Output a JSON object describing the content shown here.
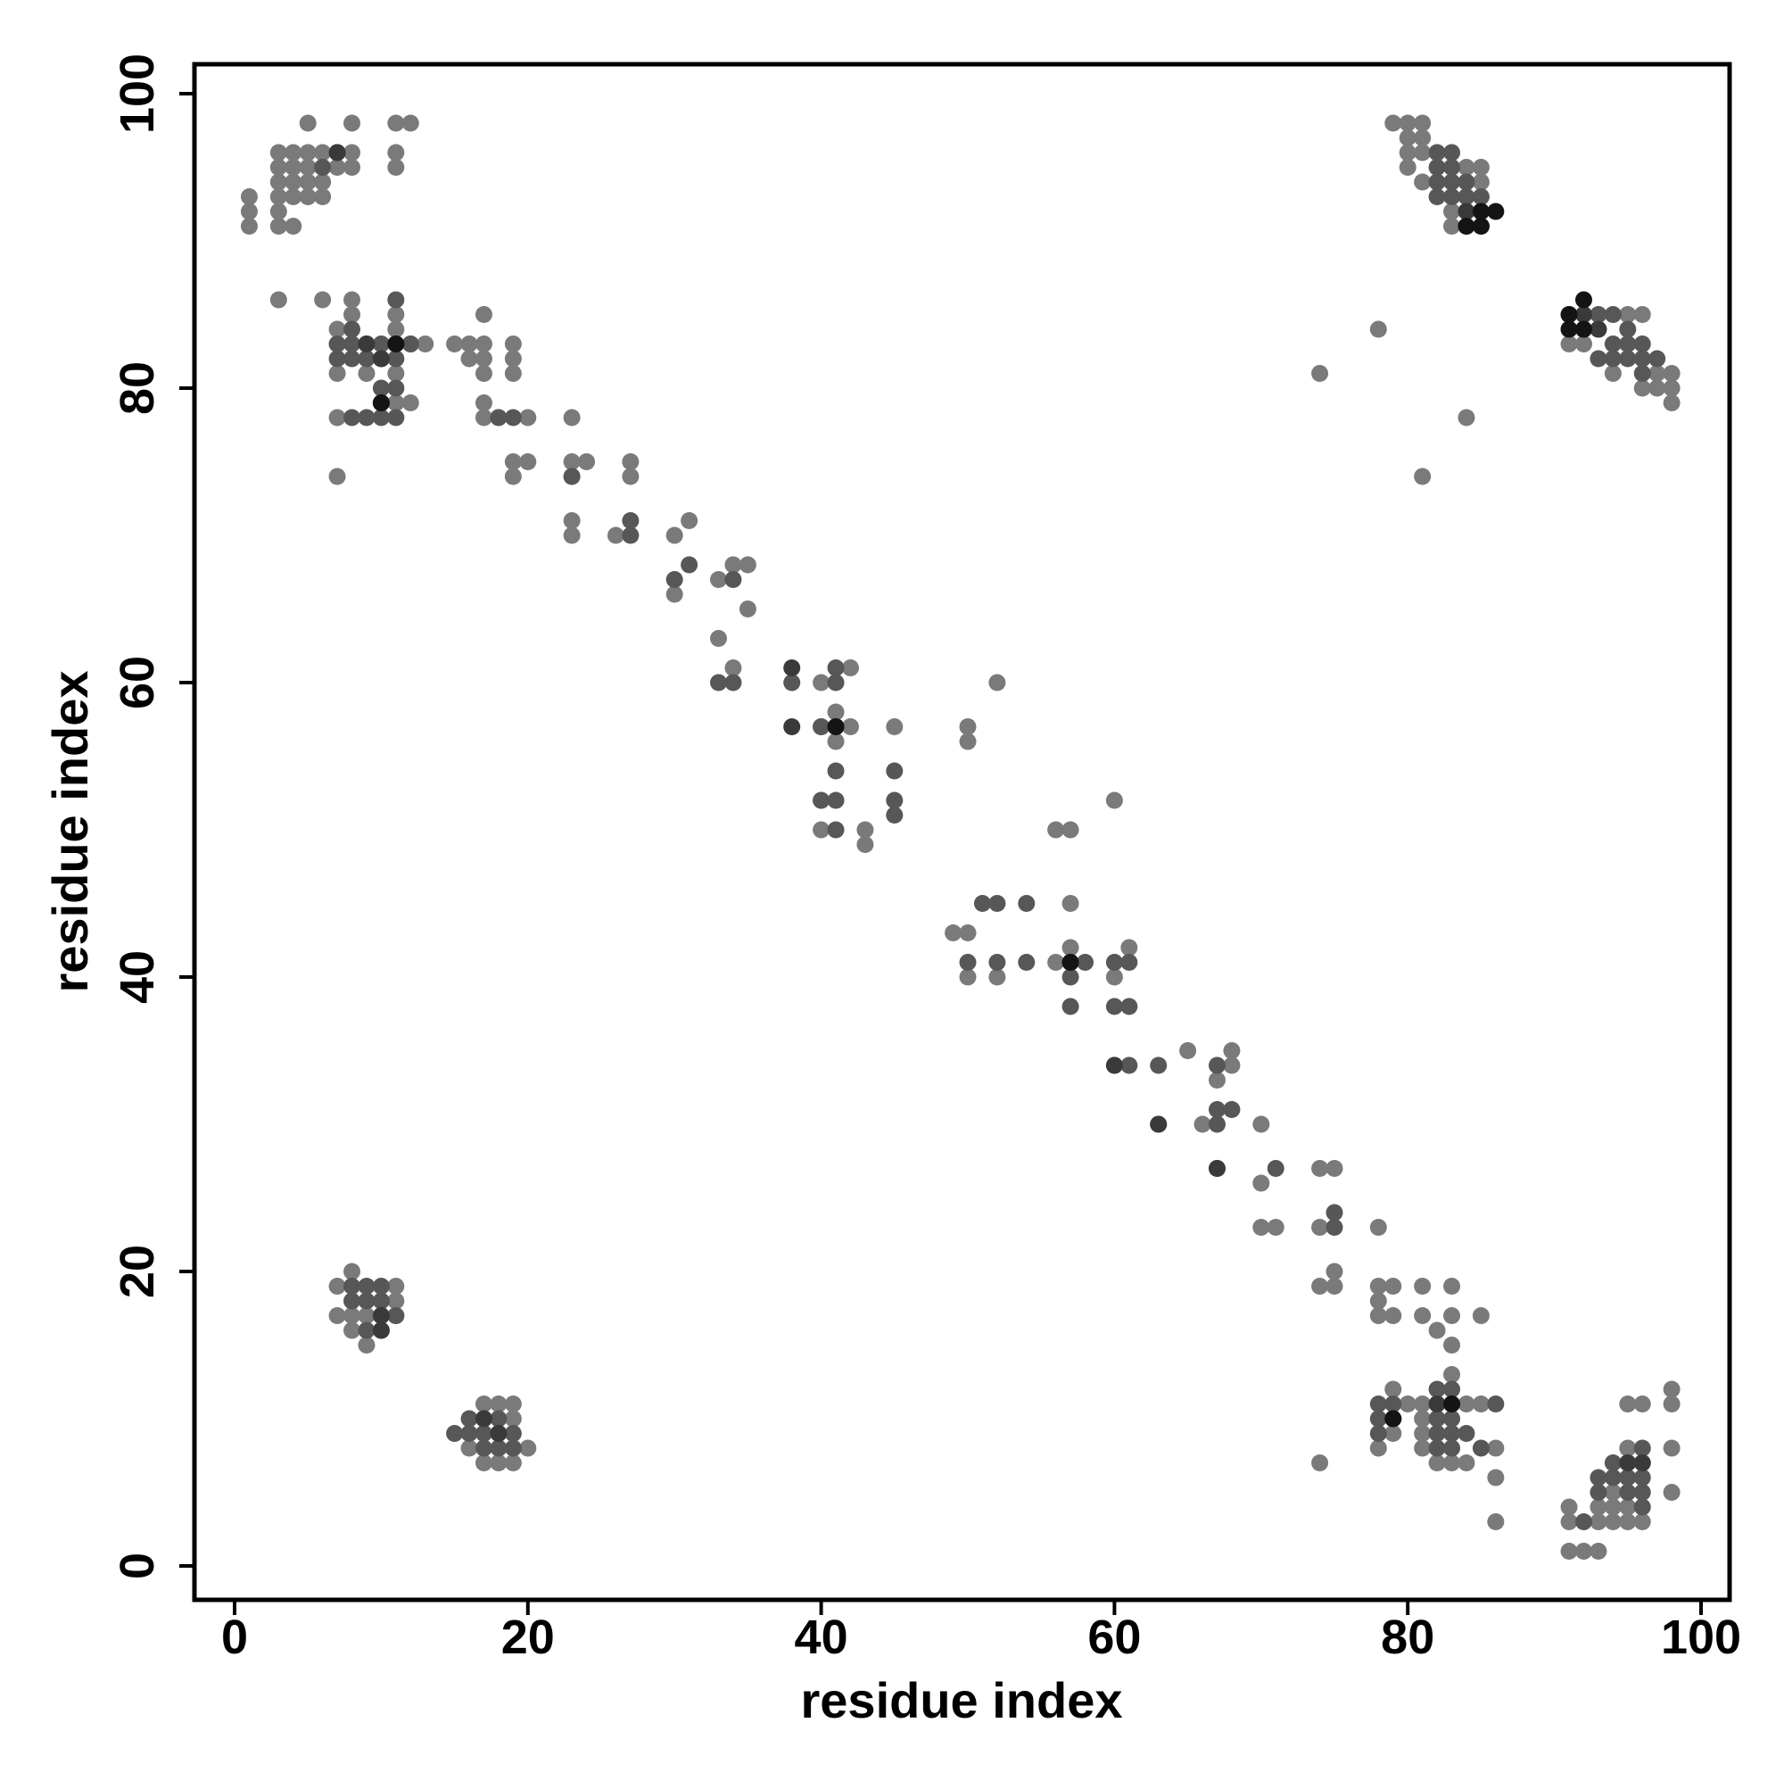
{
  "chart_data": {
    "type": "scatter",
    "title": "",
    "xlabel": "residue index",
    "ylabel": "residue index",
    "xlim": [
      -3,
      101.5
    ],
    "ylim": [
      -3,
      101.5
    ],
    "xticks": [
      0,
      20,
      40,
      60,
      80,
      100
    ],
    "yticks": [
      0,
      20,
      40,
      60,
      80,
      100
    ],
    "grid": false,
    "legend": "none",
    "marker_colors": {
      "light": "#7a7a7a",
      "mid": "#575757",
      "dark": "#3a3a3a",
      "darkest": "#141414"
    },
    "points_light": [
      [
        1,
        91
      ],
      [
        1,
        92
      ],
      [
        1,
        93
      ],
      [
        3,
        91
      ],
      [
        3,
        92
      ],
      [
        3,
        93
      ],
      [
        3,
        94
      ],
      [
        3,
        95
      ],
      [
        3,
        96
      ],
      [
        4,
        91
      ],
      [
        4,
        93
      ],
      [
        4,
        94
      ],
      [
        4,
        95
      ],
      [
        4,
        96
      ],
      [
        5,
        93
      ],
      [
        5,
        94
      ],
      [
        5,
        95
      ],
      [
        5,
        96
      ],
      [
        5,
        98
      ],
      [
        6,
        93
      ],
      [
        6,
        94
      ],
      [
        6,
        95
      ],
      [
        6,
        96
      ],
      [
        7,
        95
      ],
      [
        8,
        95
      ],
      [
        8,
        96
      ],
      [
        8,
        98
      ],
      [
        11,
        95
      ],
      [
        11,
        96
      ],
      [
        11,
        98
      ],
      [
        12,
        98
      ],
      [
        3,
        86
      ],
      [
        6,
        86
      ],
      [
        7,
        74
      ],
      [
        7,
        78
      ],
      [
        7,
        81
      ],
      [
        7,
        83
      ],
      [
        7,
        84
      ],
      [
        8,
        85
      ],
      [
        8,
        86
      ],
      [
        9,
        81
      ],
      [
        9,
        83
      ],
      [
        11,
        84
      ],
      [
        11,
        85
      ],
      [
        11,
        81
      ],
      [
        11,
        79
      ],
      [
        12,
        79
      ],
      [
        12,
        83
      ],
      [
        13,
        83
      ],
      [
        15,
        83
      ],
      [
        16,
        82
      ],
      [
        16,
        83
      ],
      [
        17,
        82
      ],
      [
        17,
        83
      ],
      [
        17,
        85
      ],
      [
        17,
        81
      ],
      [
        17,
        79
      ],
      [
        17,
        78
      ],
      [
        18,
        78
      ],
      [
        19,
        74
      ],
      [
        19,
        75
      ],
      [
        19,
        81
      ],
      [
        19,
        82
      ],
      [
        19,
        83
      ],
      [
        20,
        75
      ],
      [
        20,
        78
      ],
      [
        23,
        78
      ],
      [
        23,
        74
      ],
      [
        23,
        75
      ],
      [
        24,
        75
      ],
      [
        23,
        70
      ],
      [
        23,
        71
      ],
      [
        26,
        70
      ],
      [
        27,
        74
      ],
      [
        27,
        75
      ],
      [
        30,
        66
      ],
      [
        30,
        70
      ],
      [
        31,
        71
      ],
      [
        33,
        67
      ],
      [
        33,
        63
      ],
      [
        34,
        68
      ],
      [
        35,
        65
      ],
      [
        35,
        68
      ],
      [
        34,
        61
      ],
      [
        40,
        60
      ],
      [
        40,
        57
      ],
      [
        41,
        56
      ],
      [
        41,
        58
      ],
      [
        42,
        61
      ],
      [
        42,
        57
      ],
      [
        45,
        57
      ],
      [
        43,
        50
      ],
      [
        43,
        49
      ],
      [
        40,
        50
      ],
      [
        40,
        52
      ],
      [
        50,
        57
      ],
      [
        50,
        56
      ],
      [
        52,
        60
      ],
      [
        60,
        52
      ],
      [
        56,
        50
      ],
      [
        57,
        50
      ],
      [
        57,
        45
      ],
      [
        57,
        42
      ],
      [
        49,
        43
      ],
      [
        50,
        43
      ],
      [
        50,
        40
      ],
      [
        52,
        40
      ],
      [
        56,
        41
      ],
      [
        60,
        40
      ],
      [
        61,
        42
      ],
      [
        65,
        35
      ],
      [
        67,
        33
      ],
      [
        68,
        35
      ],
      [
        68,
        34
      ],
      [
        66,
        30
      ],
      [
        70,
        30
      ],
      [
        70,
        26
      ],
      [
        70,
        23
      ],
      [
        71,
        23
      ],
      [
        74,
        27
      ],
      [
        75,
        27
      ],
      [
        74,
        23
      ],
      [
        75,
        20
      ],
      [
        74,
        19
      ],
      [
        75,
        19
      ],
      [
        78,
        23
      ],
      [
        78,
        19
      ],
      [
        78,
        18
      ],
      [
        79,
        17
      ],
      [
        78,
        17
      ],
      [
        79,
        19
      ],
      [
        81,
        19
      ],
      [
        81,
        17
      ],
      [
        82,
        16
      ],
      [
        83,
        19
      ],
      [
        83,
        17
      ],
      [
        83,
        15
      ],
      [
        85,
        17
      ],
      [
        74,
        7
      ],
      [
        78,
        8
      ],
      [
        79,
        9
      ],
      [
        79,
        12
      ],
      [
        80,
        11
      ],
      [
        81,
        11
      ],
      [
        81,
        10
      ],
      [
        81,
        9
      ],
      [
        82,
        7
      ],
      [
        83,
        7
      ],
      [
        83,
        13
      ],
      [
        84,
        7
      ],
      [
        84,
        11
      ],
      [
        85,
        11
      ],
      [
        86,
        8
      ],
      [
        86,
        6
      ],
      [
        86,
        3
      ],
      [
        81,
        8
      ],
      [
        91,
        4
      ],
      [
        91,
        3
      ],
      [
        91,
        1
      ],
      [
        92,
        1
      ],
      [
        93,
        1
      ],
      [
        93,
        3
      ],
      [
        93,
        4
      ],
      [
        94,
        3
      ],
      [
        94,
        4
      ],
      [
        94,
        5
      ],
      [
        95,
        3
      ],
      [
        95,
        4
      ],
      [
        95,
        11
      ],
      [
        96,
        3
      ],
      [
        96,
        11
      ],
      [
        98,
        12
      ],
      [
        98,
        11
      ],
      [
        98,
        8
      ],
      [
        98,
        5
      ],
      [
        95,
        8
      ],
      [
        79,
        98
      ],
      [
        80,
        98
      ],
      [
        81,
        98
      ],
      [
        80,
        97
      ],
      [
        81,
        97
      ],
      [
        80,
        96
      ],
      [
        81,
        96
      ],
      [
        80,
        95
      ],
      [
        81,
        94
      ],
      [
        84,
        95
      ],
      [
        85,
        95
      ],
      [
        83,
        91
      ],
      [
        83,
        92
      ],
      [
        85,
        94
      ],
      [
        91,
        84
      ],
      [
        91,
        83
      ],
      [
        92,
        83
      ],
      [
        95,
        85
      ],
      [
        96,
        85
      ],
      [
        94,
        81
      ],
      [
        96,
        80
      ],
      [
        97,
        80
      ],
      [
        97,
        81
      ],
      [
        98,
        80
      ],
      [
        98,
        81
      ],
      [
        98,
        79
      ],
      [
        78,
        84
      ],
      [
        74,
        81
      ],
      [
        84,
        78
      ],
      [
        81,
        74
      ],
      [
        8,
        17
      ],
      [
        8,
        16
      ],
      [
        9,
        15
      ],
      [
        7,
        17
      ],
      [
        7,
        19
      ],
      [
        11,
        17
      ],
      [
        11,
        18
      ],
      [
        11,
        19
      ],
      [
        8,
        20
      ],
      [
        9,
        17
      ],
      [
        16,
        8
      ],
      [
        17,
        7
      ],
      [
        18,
        7
      ],
      [
        19,
        7
      ],
      [
        19,
        10
      ],
      [
        19,
        11
      ],
      [
        20,
        8
      ],
      [
        17,
        11
      ],
      [
        18,
        11
      ]
    ],
    "points_mid": [
      [
        6,
        95
      ],
      [
        7,
        96
      ],
      [
        8,
        82
      ],
      [
        8,
        83
      ],
      [
        8,
        84
      ],
      [
        9,
        82
      ],
      [
        10,
        83
      ],
      [
        10,
        82
      ],
      [
        10,
        78
      ],
      [
        11,
        86
      ],
      [
        11,
        82
      ],
      [
        11,
        80
      ],
      [
        9,
        78
      ],
      [
        8,
        78
      ],
      [
        7,
        82
      ],
      [
        7,
        83
      ],
      [
        10,
        80
      ],
      [
        10,
        79
      ],
      [
        11,
        78
      ],
      [
        12,
        83
      ],
      [
        18,
        78
      ],
      [
        19,
        78
      ],
      [
        23,
        74
      ],
      [
        27,
        70
      ],
      [
        27,
        71
      ],
      [
        30,
        67
      ],
      [
        31,
        68
      ],
      [
        33,
        60
      ],
      [
        34,
        60
      ],
      [
        34,
        67
      ],
      [
        38,
        60
      ],
      [
        40,
        57
      ],
      [
        41,
        60
      ],
      [
        41,
        61
      ],
      [
        41,
        57
      ],
      [
        40,
        52
      ],
      [
        41,
        52
      ],
      [
        41,
        50
      ],
      [
        45,
        52
      ],
      [
        45,
        51
      ],
      [
        45,
        54
      ],
      [
        41,
        54
      ],
      [
        51,
        45
      ],
      [
        52,
        45
      ],
      [
        54,
        45
      ],
      [
        52,
        41
      ],
      [
        50,
        41
      ],
      [
        54,
        41
      ],
      [
        57,
        41
      ],
      [
        57,
        40
      ],
      [
        57,
        38
      ],
      [
        58,
        41
      ],
      [
        60,
        41
      ],
      [
        61,
        41
      ],
      [
        60,
        38
      ],
      [
        61,
        38
      ],
      [
        60,
        34
      ],
      [
        61,
        34
      ],
      [
        63,
        34
      ],
      [
        63,
        30
      ],
      [
        67,
        34
      ],
      [
        67,
        31
      ],
      [
        68,
        31
      ],
      [
        67,
        30
      ],
      [
        67,
        27
      ],
      [
        71,
        27
      ],
      [
        75,
        24
      ],
      [
        75,
        23
      ],
      [
        78,
        10
      ],
      [
        78,
        11
      ],
      [
        79,
        11
      ],
      [
        79,
        10
      ],
      [
        78,
        9
      ],
      [
        82,
        10
      ],
      [
        82,
        9
      ],
      [
        82,
        8
      ],
      [
        83,
        10
      ],
      [
        83,
        9
      ],
      [
        83,
        8
      ],
      [
        82,
        11
      ],
      [
        84,
        9
      ],
      [
        85,
        8
      ],
      [
        86,
        11
      ],
      [
        83,
        12
      ],
      [
        82,
        12
      ],
      [
        92,
        3
      ],
      [
        93,
        5
      ],
      [
        93,
        6
      ],
      [
        94,
        6
      ],
      [
        95,
        6
      ],
      [
        95,
        7
      ],
      [
        96,
        6
      ],
      [
        96,
        5
      ],
      [
        96,
        4
      ],
      [
        95,
        5
      ],
      [
        94,
        7
      ],
      [
        96,
        7
      ],
      [
        96,
        8
      ],
      [
        82,
        96
      ],
      [
        83,
        96
      ],
      [
        82,
        95
      ],
      [
        83,
        95
      ],
      [
        83,
        94
      ],
      [
        84,
        94
      ],
      [
        84,
        93
      ],
      [
        85,
        93
      ],
      [
        82,
        93
      ],
      [
        82,
        94
      ],
      [
        84,
        92
      ],
      [
        85,
        92
      ],
      [
        83,
        93
      ],
      [
        93,
        84
      ],
      [
        94,
        85
      ],
      [
        93,
        85
      ],
      [
        94,
        83
      ],
      [
        95,
        83
      ],
      [
        95,
        84
      ],
      [
        96,
        83
      ],
      [
        96,
        82
      ],
      [
        96,
        81
      ],
      [
        95,
        82
      ],
      [
        97,
        82
      ],
      [
        93,
        82
      ],
      [
        94,
        82
      ],
      [
        8,
        19
      ],
      [
        8,
        18
      ],
      [
        9,
        19
      ],
      [
        9,
        18
      ],
      [
        10,
        19
      ],
      [
        10,
        18
      ],
      [
        10,
        17
      ],
      [
        9,
        16
      ],
      [
        10,
        16
      ],
      [
        11,
        17
      ],
      [
        15,
        9
      ],
      [
        16,
        9
      ],
      [
        16,
        10
      ],
      [
        17,
        9
      ],
      [
        17,
        8
      ],
      [
        17,
        10
      ],
      [
        18,
        8
      ],
      [
        18,
        9
      ],
      [
        19,
        8
      ],
      [
        19,
        9
      ],
      [
        18,
        10
      ]
    ],
    "points_dark": [
      [
        7,
        96
      ],
      [
        10,
        82
      ],
      [
        11,
        83
      ],
      [
        9,
        83
      ],
      [
        10,
        79
      ],
      [
        38,
        61
      ],
      [
        38,
        57
      ],
      [
        41,
        57
      ],
      [
        57,
        41
      ],
      [
        60,
        34
      ],
      [
        63,
        30
      ],
      [
        67,
        27
      ],
      [
        79,
        10
      ],
      [
        83,
        11
      ],
      [
        82,
        11
      ],
      [
        96,
        7
      ],
      [
        95,
        7
      ],
      [
        84,
        91
      ],
      [
        85,
        91
      ],
      [
        85,
        92
      ],
      [
        84,
        92
      ],
      [
        91,
        85
      ],
      [
        92,
        85
      ],
      [
        92,
        84
      ],
      [
        93,
        84
      ],
      [
        10,
        17
      ],
      [
        10,
        16
      ],
      [
        17,
        10
      ],
      [
        18,
        9
      ]
    ],
    "points_darkest": [
      [
        11,
        83
      ],
      [
        10,
        79
      ],
      [
        41,
        57
      ],
      [
        57,
        41
      ],
      [
        79,
        10
      ],
      [
        83,
        11
      ],
      [
        84,
        91
      ],
      [
        85,
        91
      ],
      [
        85,
        92
      ],
      [
        86,
        92
      ],
      [
        91,
        84
      ],
      [
        92,
        84
      ],
      [
        92,
        86
      ],
      [
        91,
        85
      ]
    ]
  }
}
